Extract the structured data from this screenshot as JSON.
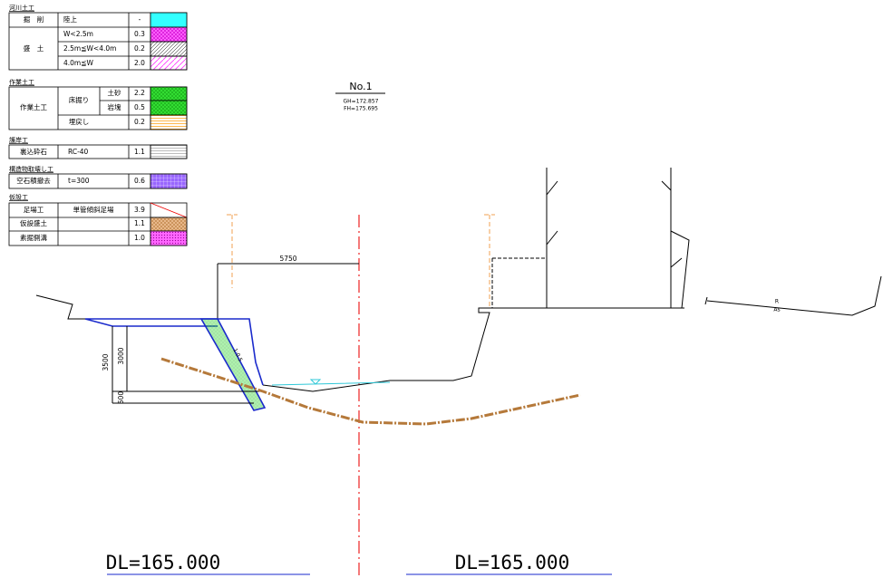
{
  "legend": {
    "sections": [
      {
        "title": "河川土工",
        "cells": [
          "掘　削",
          "陸上",
          "-",
          "盛　土",
          "W<2.5m",
          "0.3",
          "2.5m≦W<4.0m",
          "0.2",
          "4.0m≦W",
          "2.0"
        ]
      },
      {
        "title": "作業土工",
        "cells": [
          "作業土工",
          "床掘り",
          "土砂",
          "2.2",
          "岩塊",
          "0.5",
          "埋戻し",
          "0.2"
        ]
      },
      {
        "title": "護岸工",
        "cells": [
          "裏込砕石",
          "RC-40",
          "1.1"
        ]
      },
      {
        "title": "構造物取壊し工",
        "cells": [
          "空石積撤去",
          "t=300",
          "0.6"
        ]
      },
      {
        "title": "仮設工",
        "cells": [
          "足場工",
          "単管傾斜足場",
          "3.9",
          "仮設盛土",
          "1.1",
          "素掘側溝",
          "1.0"
        ]
      }
    ]
  },
  "drawing": {
    "section_label": "No.1",
    "gh": "GH=172.857",
    "fh": "FH=175.695",
    "dims": [
      "5750",
      "3500",
      "3000",
      "500"
    ],
    "slope": "1:0.5",
    "pavement": [
      "R",
      "As"
    ],
    "datum_left": "DL=165.000",
    "datum_right": "DL=165.000"
  }
}
